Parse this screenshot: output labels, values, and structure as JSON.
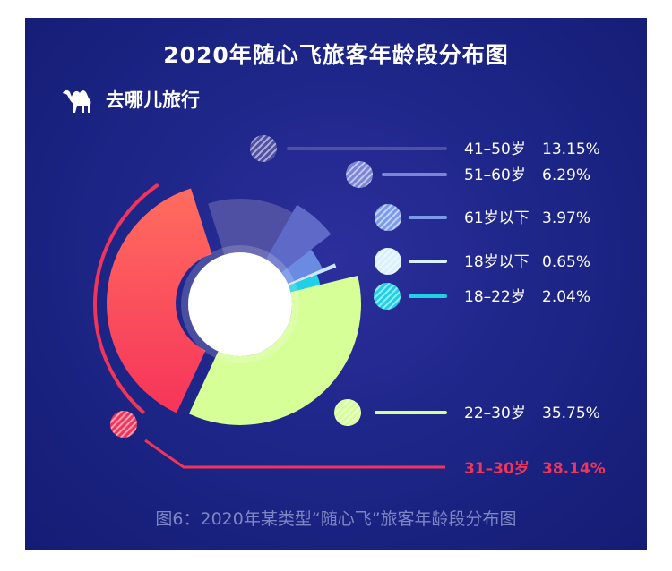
{
  "title": "2020年随心飞旅客年龄段分布图",
  "brand": {
    "name": "去哪儿旅行",
    "logo_icon": "camel-icon"
  },
  "caption": "图6：2020年某类型“随心飞”旅客年龄段分布图",
  "colors": {
    "background": "#1e2689",
    "accent_red": "#f0345a",
    "label_text": "#ffffff"
  },
  "chart_data": {
    "type": "pie",
    "title": "2020年随心飞旅客年龄段分布图",
    "slices": [
      {
        "label": "31–30岁",
        "value": 38.14,
        "value_text": "38.14%",
        "color": "#f6345a",
        "color2": "#ff6d5f",
        "highlight": true
      },
      {
        "label": "41–50岁",
        "value": 13.15,
        "value_text": "13.15%",
        "color": "#4f4fa3"
      },
      {
        "label": "51–60岁",
        "value": 6.29,
        "value_text": "6.29%",
        "color": "#5f6ac8"
      },
      {
        "label": "61岁以下",
        "value": 3.97,
        "value_text": "3.97%",
        "color": "#6b8be3"
      },
      {
        "label": "18岁以下",
        "value": 0.65,
        "value_text": "0.65%",
        "color": "#c7e9ff"
      },
      {
        "label": "18–22岁",
        "value": 2.04,
        "value_text": "2.04%",
        "color": "#1fd0e6"
      },
      {
        "label": "22–30岁",
        "value": 35.75,
        "value_text": "35.75%",
        "color": "#d6ff98"
      }
    ],
    "legend_order": [
      "41–50岁",
      "51–60岁",
      "61岁以下",
      "18岁以下",
      "18–22岁",
      "22–30岁",
      "31–30岁"
    ]
  }
}
